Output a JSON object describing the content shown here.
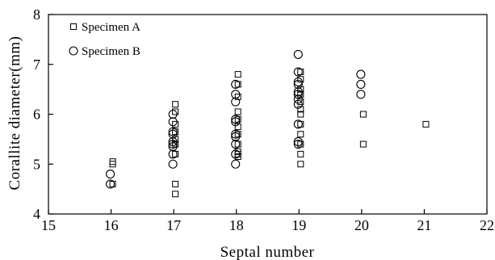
{
  "chart_data": {
    "type": "scatter",
    "title": "",
    "xlabel": "Septal number",
    "ylabel": "Corallite diameter(mm)",
    "xlim": [
      15,
      22
    ],
    "ylim": [
      4,
      8
    ],
    "x_ticks": [
      "15",
      "16",
      "17",
      "18",
      "19",
      "20",
      "21",
      "22"
    ],
    "y_ticks": [
      "4",
      "5",
      "6",
      "7",
      "8"
    ],
    "grid": false,
    "legend_position": "top-left",
    "series": [
      {
        "name": "Specimen A",
        "marker": "square",
        "points": [
          [
            16,
            5.05
          ],
          [
            16,
            5.0
          ],
          [
            16,
            4.6
          ],
          [
            17,
            6.2
          ],
          [
            17,
            6.05
          ],
          [
            17,
            5.8
          ],
          [
            17,
            5.65
          ],
          [
            17,
            5.5
          ],
          [
            17,
            5.4
          ],
          [
            17,
            5.2
          ],
          [
            17,
            4.6
          ],
          [
            17,
            4.4
          ],
          [
            18,
            6.8
          ],
          [
            18,
            6.6
          ],
          [
            18,
            6.35
          ],
          [
            18,
            6.05
          ],
          [
            18,
            5.9
          ],
          [
            18,
            5.75
          ],
          [
            18,
            5.6
          ],
          [
            18,
            5.4
          ],
          [
            18,
            5.25
          ],
          [
            18,
            5.2
          ],
          [
            18,
            5.15
          ],
          [
            19,
            6.85
          ],
          [
            19,
            6.7
          ],
          [
            19,
            6.5
          ],
          [
            19,
            6.4
          ],
          [
            19,
            6.25
          ],
          [
            19,
            6.1
          ],
          [
            19,
            6.0
          ],
          [
            19,
            5.8
          ],
          [
            19,
            5.6
          ],
          [
            19,
            5.4
          ],
          [
            19,
            5.2
          ],
          [
            19,
            5.0
          ],
          [
            20,
            6.0
          ],
          [
            20,
            5.4
          ],
          [
            21,
            5.8
          ]
        ]
      },
      {
        "name": "Specimen B",
        "marker": "circle",
        "points": [
          [
            16,
            4.8
          ],
          [
            16,
            4.6
          ],
          [
            17,
            6.0
          ],
          [
            17,
            5.85
          ],
          [
            17,
            5.65
          ],
          [
            17,
            5.6
          ],
          [
            17,
            5.45
          ],
          [
            17,
            5.4
          ],
          [
            17,
            5.35
          ],
          [
            17,
            5.2
          ],
          [
            17,
            5.0
          ],
          [
            18,
            6.6
          ],
          [
            18,
            6.4
          ],
          [
            18,
            6.25
          ],
          [
            18,
            5.9
          ],
          [
            18,
            5.85
          ],
          [
            18,
            5.6
          ],
          [
            18,
            5.55
          ],
          [
            18,
            5.4
          ],
          [
            18,
            5.2
          ],
          [
            18,
            5.0
          ],
          [
            19,
            7.2
          ],
          [
            19,
            6.85
          ],
          [
            19,
            6.65
          ],
          [
            19,
            6.6
          ],
          [
            19,
            6.45
          ],
          [
            19,
            6.4
          ],
          [
            19,
            6.3
          ],
          [
            19,
            6.2
          ],
          [
            19,
            5.8
          ],
          [
            19,
            5.45
          ],
          [
            19,
            5.4
          ],
          [
            20,
            6.8
          ],
          [
            20,
            6.6
          ],
          [
            20,
            6.4
          ]
        ]
      }
    ]
  }
}
